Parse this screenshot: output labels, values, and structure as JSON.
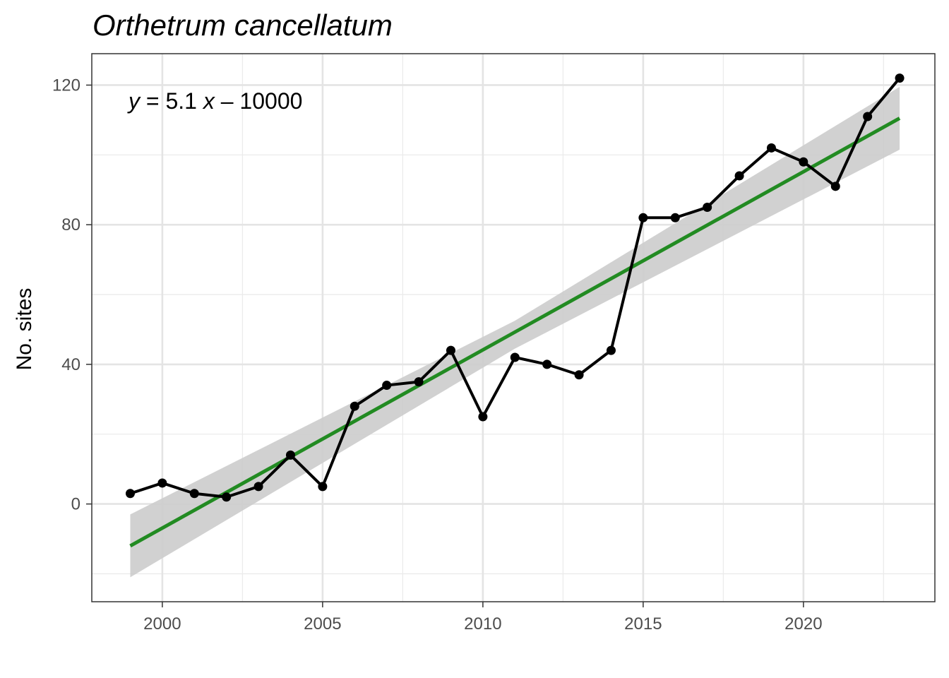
{
  "chart_data": {
    "type": "line",
    "title": "Orthetrum cancellatum",
    "xlabel": "",
    "ylabel": "No. sites",
    "xlim": [
      1997.8,
      2024.1
    ],
    "ylim": [
      -28,
      129
    ],
    "x_ticks": [
      2000,
      2005,
      2010,
      2015,
      2020
    ],
    "x_tick_labels": [
      "2000",
      "2005",
      "2010",
      "2015",
      "2020"
    ],
    "y_ticks": [
      0,
      40,
      80,
      120
    ],
    "y_tick_labels": [
      "0",
      "40",
      "80",
      "120"
    ],
    "grid": true,
    "series": [
      {
        "color": "#000000",
        "x": [
          1999,
          2000,
          2001,
          2002,
          2003,
          2004,
          2005,
          2006,
          2007,
          2008,
          2009,
          2010,
          2011,
          2012,
          2013,
          2014,
          2015,
          2016,
          2017,
          2018,
          2019,
          2020,
          2021,
          2022,
          2023
        ],
        "y": [
          3,
          6,
          3,
          2,
          5,
          14,
          5,
          28,
          34,
          35,
          44,
          25,
          42,
          40,
          37,
          44,
          82,
          82,
          85,
          94,
          102,
          98,
          91,
          111,
          122
        ]
      }
    ],
    "trend": {
      "color": "#228b22",
      "x": [
        1999,
        2023
      ],
      "y": [
        -12,
        110.5
      ],
      "ribbon_color": "#cccccc",
      "ribbon": {
        "x": [
          1999,
          2011,
          2023
        ],
        "lower": [
          -21,
          44.5,
          101.5
        ],
        "upper": [
          -3,
          52.5,
          119.5
        ]
      }
    },
    "annotation": {
      "italic_y": "y",
      "text_mid": " = 5.1 ",
      "italic_x": "x",
      "text_end": " – 10000"
    }
  }
}
